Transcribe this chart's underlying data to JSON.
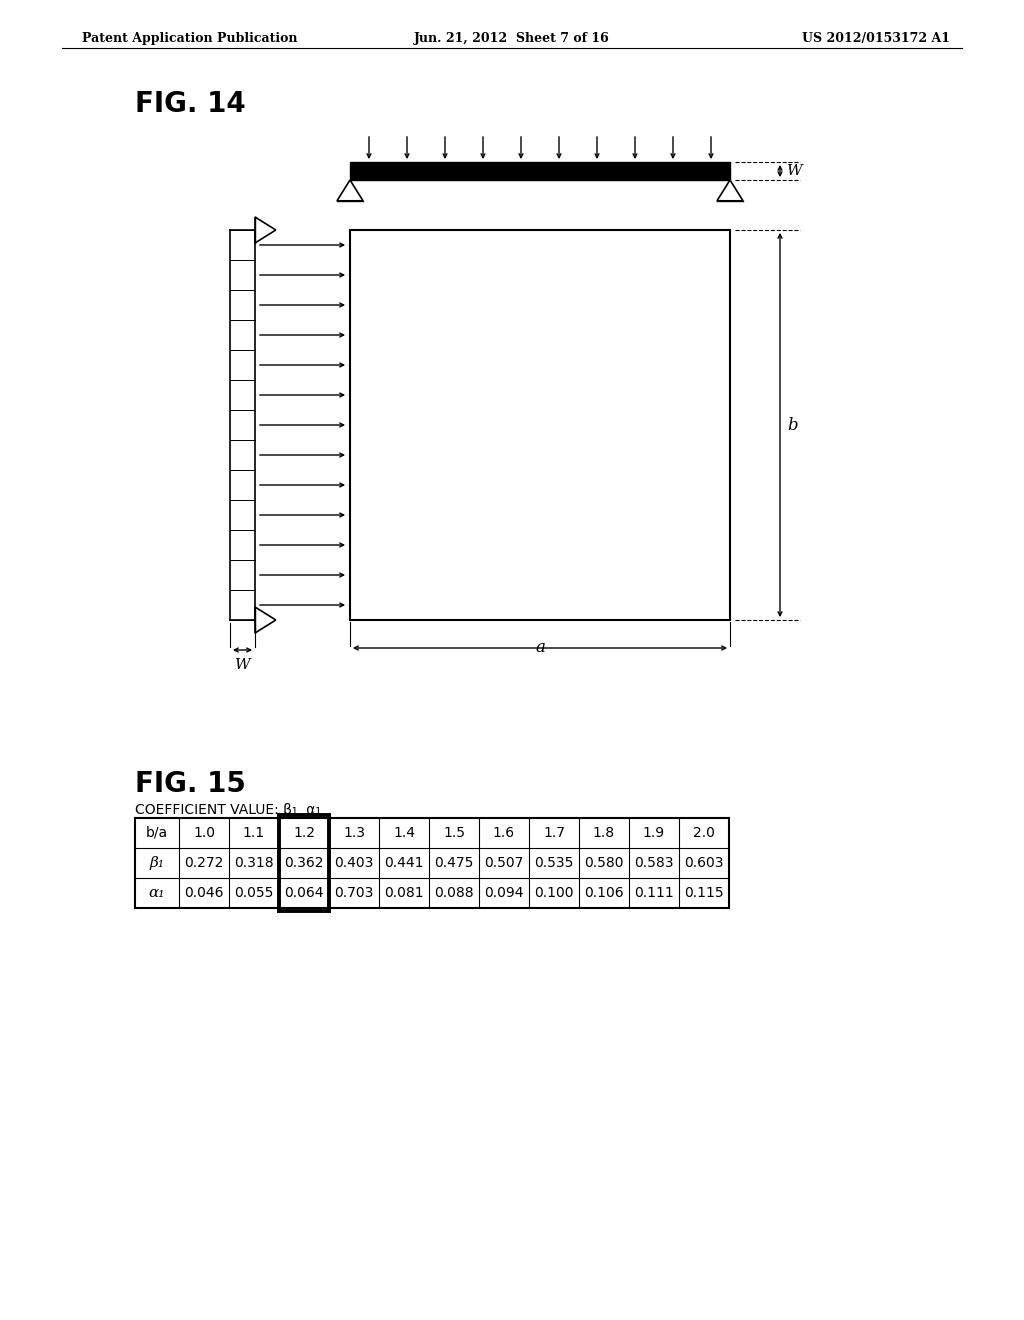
{
  "header_left": "Patent Application Publication",
  "header_center": "Jun. 21, 2012  Sheet 7 of 16",
  "header_right": "US 2012/0153172 A1",
  "fig14_label": "FIG. 14",
  "fig15_label": "FIG. 15",
  "table_title": "COEFFICIENT VALUE: β₁, α₁",
  "table_headers": [
    "b/a",
    "1.0",
    "1.1",
    "1.2",
    "1.3",
    "1.4",
    "1.5",
    "1.6",
    "1.7",
    "1.8",
    "1.9",
    "2.0"
  ],
  "table_row1_label": "β₁",
  "table_row1": [
    "0.272",
    "0.318",
    "0.362",
    "0.403",
    "0.441",
    "0.475",
    "0.507",
    "0.535",
    "0.580",
    "0.583",
    "0.603"
  ],
  "table_row2_label": "α₁",
  "table_row2": [
    "0.046",
    "0.055",
    "0.064",
    "0.703",
    "0.081",
    "0.088",
    "0.094",
    "0.100",
    "0.106",
    "0.111",
    "0.115"
  ],
  "highlight_col": 2,
  "bg_color": "#ffffff",
  "line_color": "#000000"
}
